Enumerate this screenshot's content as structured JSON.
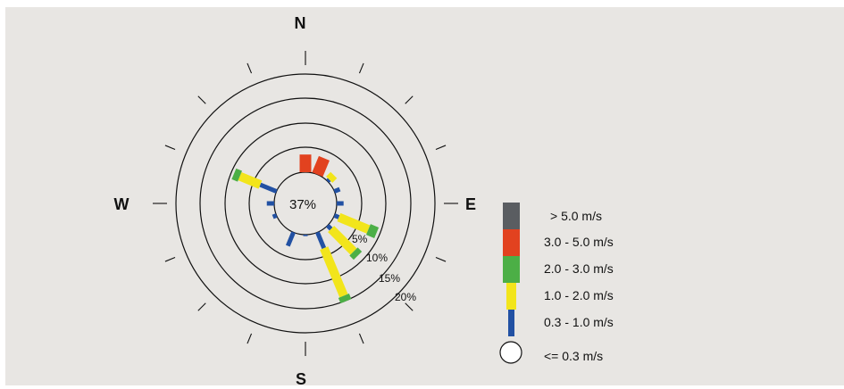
{
  "chart_data": {
    "type": "wind-rose",
    "directions": [
      "N",
      "E",
      "S",
      "W"
    ],
    "calm_percent_label": "37%",
    "rings": [
      {
        "value": 5,
        "label": "5%"
      },
      {
        "value": 10,
        "label": "10%"
      },
      {
        "value": 15,
        "label": "15%"
      },
      {
        "value": 20,
        "label": "20%"
      }
    ],
    "outer_scale": 25,
    "center_offset": 5,
    "speed_bins": [
      {
        "key": "b1",
        "label": "0.3 - 1.0 m/s",
        "color": "#2251a3"
      },
      {
        "key": "b2",
        "label": "1.0 - 2.0 m/s",
        "color": "#f2e51b"
      },
      {
        "key": "b3",
        "label": "2.0 - 3.0 m/s",
        "color": "#4caf46"
      },
      {
        "key": "b4",
        "label": "3.0 - 5.0 m/s",
        "color": "#e2421f"
      },
      {
        "key": "b5",
        "label": "> 5.0 m/s",
        "color": "#5a5d61"
      }
    ],
    "calm_label": "<= 0.3 m/s",
    "petals": [
      {
        "dir_deg": 0,
        "b1": 0,
        "b2": 0,
        "b3": 0,
        "b4": 3.6
      },
      {
        "dir_deg": 22.5,
        "b1": 0,
        "b2": 0,
        "b3": 0,
        "b4": 3.6
      },
      {
        "dir_deg": 45,
        "b1": 0.5,
        "b2": 1.3,
        "b3": 0,
        "b4": 0
      },
      {
        "dir_deg": 67.5,
        "b1": 1.2,
        "b2": 0,
        "b3": 0,
        "b4": 0
      },
      {
        "dir_deg": 90,
        "b1": 1.4,
        "b2": 0,
        "b3": 0,
        "b4": 0
      },
      {
        "dir_deg": 112.5,
        "b1": 1.0,
        "b2": 6.5,
        "b3": 1.8,
        "b4": 0
      },
      {
        "dir_deg": 135,
        "b1": 1.0,
        "b2": 6.5,
        "b3": 1.2,
        "b4": 0
      },
      {
        "dir_deg": 157.5,
        "b1": 3.5,
        "b2": 10.5,
        "b3": 1.2,
        "b4": 0
      },
      {
        "dir_deg": 180,
        "b1": 0.3,
        "b2": 0,
        "b3": 0,
        "b4": 0
      },
      {
        "dir_deg": 202.5,
        "b1": 3.0,
        "b2": 0,
        "b3": 0,
        "b4": 0
      },
      {
        "dir_deg": 225,
        "b1": 0,
        "b2": 0,
        "b3": 0,
        "b4": 0
      },
      {
        "dir_deg": 247.5,
        "b1": 0.8,
        "b2": 0,
        "b3": 0,
        "b4": 0
      },
      {
        "dir_deg": 270,
        "b1": 1.5,
        "b2": 0,
        "b3": 0,
        "b4": 0
      },
      {
        "dir_deg": 292.5,
        "b1": 3.6,
        "b2": 4.5,
        "b3": 1.3,
        "b4": 0
      },
      {
        "dir_deg": 315,
        "b1": 0,
        "b2": 0,
        "b3": 0,
        "b4": 0
      },
      {
        "dir_deg": 337.5,
        "b1": 0,
        "b2": 0,
        "b3": 0,
        "b4": 0
      }
    ]
  }
}
